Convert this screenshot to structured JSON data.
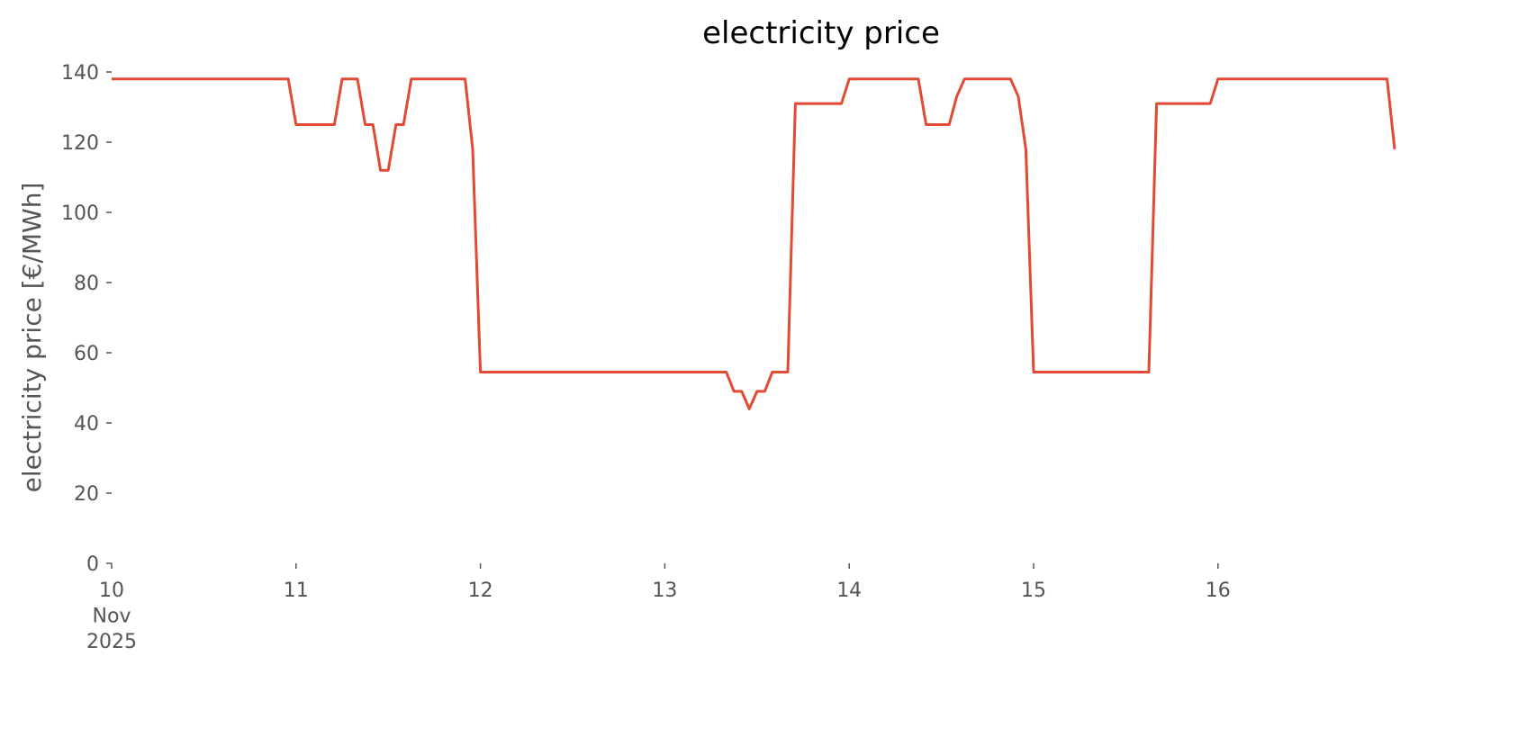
{
  "chart_data": {
    "type": "line",
    "title": "electricity price",
    "ylabel": "electricity price [€/MWh]",
    "x": [
      10,
      10.958,
      11,
      11.208,
      11.25,
      11.333,
      11.375,
      11.417,
      11.458,
      11.5,
      11.542,
      11.583,
      11.625,
      11.917,
      11.958,
      12,
      13.333,
      13.375,
      13.417,
      13.458,
      13.5,
      13.542,
      13.583,
      13.667,
      13.708,
      13.958,
      14,
      14.375,
      14.417,
      14.542,
      14.583,
      14.625,
      14.875,
      14.917,
      14.958,
      15,
      15.625,
      15.667,
      15.958,
      16,
      16.917,
      16.958
    ],
    "series": [
      {
        "color": "#E24A33",
        "values": [
          138,
          138,
          125,
          125,
          138,
          138,
          125,
          125,
          112,
          112,
          125,
          125,
          138,
          138,
          118,
          54.5,
          54.5,
          49,
          49,
          44,
          49,
          49,
          54.5,
          54.5,
          131,
          131,
          138,
          138,
          125,
          125,
          133,
          138,
          138,
          133,
          118,
          54.5,
          54.5,
          131,
          131,
          138,
          138,
          118
        ]
      }
    ],
    "xlim": [
      10,
      16.958
    ],
    "xticks": [
      {
        "value": 10,
        "label": "10\nNov\n2025"
      },
      11,
      12,
      13,
      14,
      15,
      16
    ],
    "ylim": [
      0,
      145
    ],
    "yticks": [
      0,
      20,
      40,
      60,
      80,
      100,
      120,
      140
    ]
  }
}
